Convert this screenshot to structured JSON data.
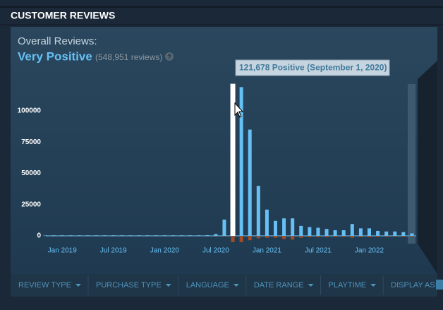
{
  "section_title": "CUSTOMER REVIEWS",
  "summary": {
    "label": "Overall Reviews:",
    "rating": "Very Positive",
    "count": "(548,951 reviews)",
    "help": "?"
  },
  "tooltip": "121,678 Positive (September 1, 2020)",
  "chart_data": {
    "type": "bar",
    "x": [
      "2018-11",
      "2018-12",
      "2019-01",
      "2019-02",
      "2019-03",
      "2019-04",
      "2019-05",
      "2019-06",
      "2019-07",
      "2019-08",
      "2019-09",
      "2019-10",
      "2019-11",
      "2019-12",
      "2020-01",
      "2020-02",
      "2020-03",
      "2020-04",
      "2020-05",
      "2020-06",
      "2020-07",
      "2020-08",
      "2020-09",
      "2020-10",
      "2020-11",
      "2020-12",
      "2021-01",
      "2021-02",
      "2021-03",
      "2021-04",
      "2021-05",
      "2021-06",
      "2021-07",
      "2021-08",
      "2021-09",
      "2021-10",
      "2021-11",
      "2021-12",
      "2022-01",
      "2022-02",
      "2022-03",
      "2022-04",
      "2022-05",
      "2022-06"
    ],
    "series": [
      {
        "color": "#66c0f4",
        "values": [
          300,
          300,
          300,
          300,
          300,
          300,
          300,
          300,
          300,
          300,
          300,
          300,
          300,
          300,
          300,
          300,
          300,
          300,
          300,
          500,
          1500,
          13000,
          121678,
          119000,
          85000,
          40000,
          21000,
          12000,
          14000,
          14000,
          8000,
          7000,
          6500,
          5500,
          4500,
          4500,
          9500,
          6000,
          6000,
          4000,
          3500,
          3500,
          3000,
          2000
        ]
      },
      {
        "color": "#a34c25",
        "values": [
          -100,
          -100,
          -100,
          -100,
          -100,
          -100,
          -100,
          -100,
          -100,
          -100,
          -100,
          -100,
          -100,
          -100,
          -100,
          -100,
          -100,
          -100,
          -100,
          -100,
          -200,
          -500,
          -5000,
          -5000,
          -3500,
          -2000,
          -1500,
          -1500,
          -2500,
          -3000,
          -1500,
          -1000,
          -1000,
          -1000,
          -800,
          -800,
          -1500,
          -1000,
          -1000,
          -700,
          -700,
          -600,
          -600,
          -500
        ]
      }
    ],
    "highlight": "2020-09",
    "highlight_color": "#ffffff",
    "ylim": [
      -7000,
      125000
    ],
    "yticks": [
      0,
      25000,
      50000,
      75000,
      100000
    ],
    "xticks": [
      {
        "value": "2019-01",
        "label": "Jan 2019"
      },
      {
        "value": "2019-07",
        "label": "Jul 2019"
      },
      {
        "value": "2020-01",
        "label": "Jan 2020"
      },
      {
        "value": "2020-07",
        "label": "Jul 2020"
      },
      {
        "value": "2021-01",
        "label": "Jan 2021"
      },
      {
        "value": "2021-07",
        "label": "Jul 2021"
      },
      {
        "value": "2022-01",
        "label": "Jan 2022"
      }
    ]
  },
  "filters": [
    "REVIEW TYPE",
    "PURCHASE TYPE",
    "LANGUAGE",
    "DATE RANGE",
    "PLAYTIME",
    "DISPLAY AS:"
  ]
}
